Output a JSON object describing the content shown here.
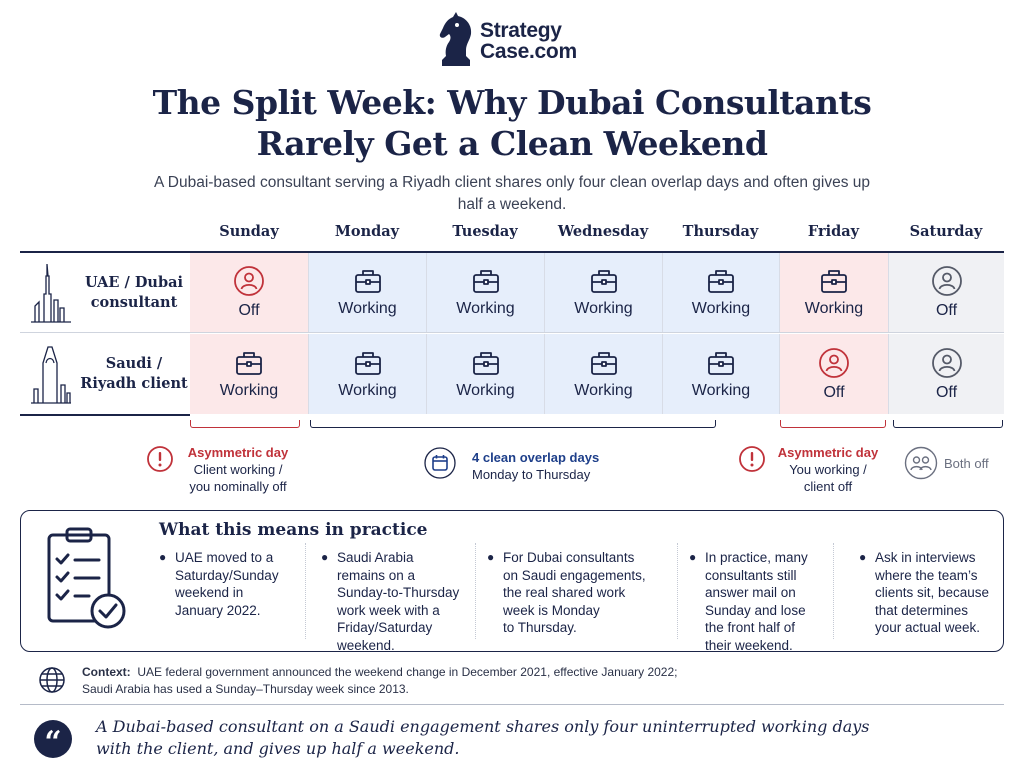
{
  "brand": {
    "line1": "Strategy",
    "line2": "Case.com",
    "icon": "knight-chess-piece-icon",
    "color": "#1b2447"
  },
  "title": {
    "line1": "The Split Week: Why Dubai Consultants",
    "line2": "Rarely Get a Clean Weekend"
  },
  "subtitle": "A Dubai-based consultant serving a Riyadh client shares only four clean overlap days and often gives up half a weekend.",
  "days": [
    "Sunday",
    "Monday",
    "Tuesday",
    "Wednesday",
    "Thursday",
    "Friday",
    "Saturday"
  ],
  "rows": [
    {
      "label": "UAE / Dubai consultant",
      "icon": "dubai-skyline-icon",
      "cells": [
        {
          "status": "Off",
          "icon": "person-icon",
          "tone": "red"
        },
        {
          "status": "Working",
          "icon": "briefcase-icon",
          "tone": "blue"
        },
        {
          "status": "Working",
          "icon": "briefcase-icon",
          "tone": "blue"
        },
        {
          "status": "Working",
          "icon": "briefcase-icon",
          "tone": "blue"
        },
        {
          "status": "Working",
          "icon": "briefcase-icon",
          "tone": "blue"
        },
        {
          "status": "Working",
          "icon": "briefcase-icon",
          "tone": "red"
        },
        {
          "status": "Off",
          "icon": "person-icon",
          "tone": "grey"
        }
      ]
    },
    {
      "label": "Saudi / Riyadh client",
      "icon": "riyadh-skyline-icon",
      "cells": [
        {
          "status": "Working",
          "icon": "briefcase-icon",
          "tone": "red"
        },
        {
          "status": "Working",
          "icon": "briefcase-icon",
          "tone": "blue"
        },
        {
          "status": "Working",
          "icon": "briefcase-icon",
          "tone": "blue"
        },
        {
          "status": "Working",
          "icon": "briefcase-icon",
          "tone": "blue"
        },
        {
          "status": "Working",
          "icon": "briefcase-icon",
          "tone": "blue"
        },
        {
          "status": "Off",
          "icon": "person-icon",
          "tone": "red"
        },
        {
          "status": "Off",
          "icon": "person-icon",
          "tone": "grey"
        }
      ]
    }
  ],
  "annotations": {
    "sunday": {
      "head": "Asymmetric day",
      "line1": "Client working /",
      "line2": "you nominally off"
    },
    "overlap": {
      "head": "4 clean overlap days",
      "line1": "Monday to Thursday"
    },
    "friday": {
      "head": "Asymmetric day",
      "line1": "You working /",
      "line2": "client off"
    },
    "saturday": {
      "label": "Both off"
    }
  },
  "practice": {
    "title": "What this means in practice",
    "points": [
      "UAE moved to a Saturday/Sunday weekend in January 2022.",
      "Saudi Arabia remains on a Sunday-to-Thursday work week with a Friday/Saturday weekend.",
      "For Dubai consultants on Saudi engagements, the real shared work week is Monday to Thursday.",
      "In practice, many consultants still answer mail on Sunday and lose the front half of their weekend.",
      "Ask in interviews where the team’s clients sit, because that determines your actual week."
    ],
    "point_lines": [
      [
        "UAE moved to a",
        "Saturday/Sunday",
        "weekend in",
        "January 2022."
      ],
      [
        "Saudi Arabia",
        "remains on a",
        "Sunday-to-Thursday",
        "work week with a",
        "Friday/Saturday",
        "weekend."
      ],
      [
        "For Dubai consultants",
        "on Saudi engagements,",
        "the real shared work",
        "week is Monday",
        "to Thursday."
      ],
      [
        "In practice, many",
        "consultants still",
        "answer mail on",
        "Sunday and lose",
        "the front half of",
        "their weekend."
      ],
      [
        "Ask in interviews",
        "where the team’s",
        "clients sit, because",
        "that determines",
        "your actual week."
      ]
    ]
  },
  "context": {
    "label": "Context:",
    "line1": "UAE federal government announced the weekend change in December 2021, effective January 2022;",
    "line2": "Saudi Arabia has used a Sunday–Thursday week since 2013."
  },
  "quote": {
    "line1": "A Dubai-based consultant on a Saudi engagement shares only four uninterrupted working days",
    "line2": "with the client, and gives up half a weekend."
  },
  "colors": {
    "navy": "#1b2447",
    "red": "#c0323a",
    "off_red_bg": "#fce8e9",
    "work_blue_bg": "#e6eefb",
    "off_grey_bg": "#f0f1f4",
    "grey": "#6b7080"
  }
}
